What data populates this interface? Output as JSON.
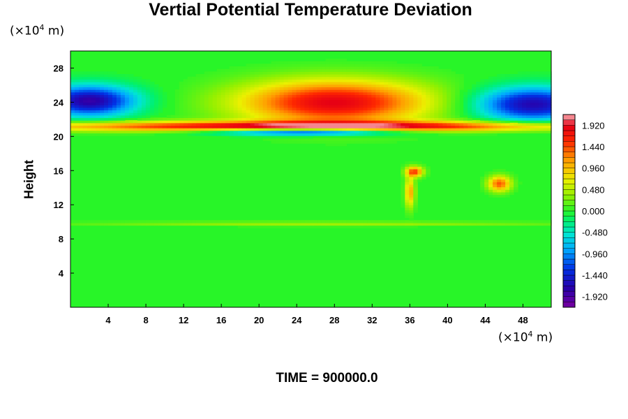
{
  "chart_data": {
    "type": "heatmap",
    "title": "Vertial Potential Temperature Deviation",
    "xlabel": "",
    "ylabel": "Height",
    "x_unit": {
      "base": "(×10",
      "exp": "4",
      "tail": " m)"
    },
    "y_unit": {
      "base": "(×10",
      "exp": "4",
      "tail": " m)"
    },
    "xlim": [
      0,
      51
    ],
    "ylim": [
      0,
      30
    ],
    "x_ticks": [
      4,
      8,
      12,
      16,
      20,
      24,
      28,
      32,
      36,
      40,
      44,
      48
    ],
    "y_ticks": [
      4,
      8,
      12,
      16,
      20,
      24,
      28
    ],
    "colorbar": {
      "min": -2.16,
      "max": 2.16,
      "tick_values": [
        1.92,
        1.44,
        0.96,
        0.48,
        0.0,
        -0.48,
        -0.96,
        -1.44,
        -1.92
      ],
      "tick_labels": [
        "1.920",
        "1.440",
        "0.960",
        "0.480",
        "0.000",
        "-0.480",
        "-0.960",
        "-1.440",
        "-1.920"
      ]
    },
    "field_features": [
      {
        "feature": "warm dome",
        "x_center": 28,
        "y_center": 24.0,
        "x_halfwidth": 10,
        "y_halfwidth": 2.6,
        "value": 1.9
      },
      {
        "feature": "cold core left",
        "x_center": 2,
        "y_center": 24.2,
        "x_halfwidth": 5,
        "y_halfwidth": 1.8,
        "value": -1.8
      },
      {
        "feature": "cold core right",
        "x_center": 49,
        "y_center": 23.8,
        "x_halfwidth": 6,
        "y_halfwidth": 2.0,
        "value": -1.7
      },
      {
        "feature": "warm layer",
        "x_center": 25,
        "y_center": 21.2,
        "x_halfwidth": 30,
        "y_halfwidth": 0.6,
        "value": 2.0
      },
      {
        "feature": "cold layer",
        "x_center": 25,
        "y_center": 20.6,
        "x_halfwidth": 10,
        "y_halfwidth": 0.45,
        "value": -1.9
      },
      {
        "feature": "warm plume",
        "x_center": 36.5,
        "y_center": 15.9,
        "x_halfwidth": 0.9,
        "y_halfwidth": 0.6,
        "value": 1.5
      },
      {
        "feature": "warm plume",
        "x_center": 36.0,
        "y_center": 13.5,
        "x_halfwidth": 0.5,
        "y_halfwidth": 1.8,
        "value": 1.1
      },
      {
        "feature": "warm plume",
        "x_center": 45.5,
        "y_center": 14.5,
        "x_halfwidth": 1.2,
        "y_halfwidth": 0.9,
        "value": 1.4
      },
      {
        "feature": "warm streak",
        "x_center": 27,
        "y_center": 9.8,
        "x_halfwidth": 27,
        "y_halfwidth": 0.25,
        "value": 0.4
      }
    ]
  },
  "footer": {
    "time": "TIME = 900000.0"
  }
}
